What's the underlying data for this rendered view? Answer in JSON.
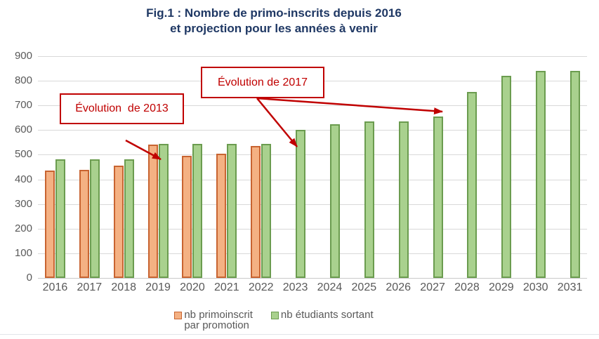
{
  "title": {
    "line1": "Fig.1 : Nombre de primo-inscrits depuis 2016",
    "line2": "et projection pour les années à venir"
  },
  "legend": [
    {
      "line1": "nb primoinscrit",
      "line2": "par promotion"
    },
    {
      "line1": "nb étudiants sortant"
    }
  ],
  "colors": {
    "title_navy": "#1F3864",
    "annotation_red": "#C00000",
    "axis_gray": "#595959",
    "gridline_gray": "#D9D9D9",
    "orange_fill": "#F4B183",
    "orange_border": "#C86431",
    "green_fill": "#A9D18E",
    "green_border": "#6B9C4F"
  },
  "chart_data": {
    "type": "bar",
    "title": "Fig.1 : Nombre de primo-inscrits depuis 2016 et projection pour les années à venir",
    "categories": [
      "2016",
      "2017",
      "2018",
      "2019",
      "2020",
      "2021",
      "2022",
      "2023",
      "2024",
      "2025",
      "2026",
      "2027",
      "2028",
      "2029",
      "2030",
      "2031"
    ],
    "series": [
      {
        "name": "nb primoinscrit par promotion",
        "fill": "#F4B183",
        "border": "#C86431",
        "values": [
          435,
          440,
          455,
          540,
          495,
          505,
          535,
          null,
          null,
          null,
          null,
          null,
          null,
          null,
          null,
          null
        ]
      },
      {
        "name": "nb étudiants sortant",
        "fill": "#A9D18E",
        "border": "#6B9C4F",
        "values": [
          480,
          480,
          480,
          545,
          545,
          545,
          545,
          600,
          625,
          635,
          635,
          655,
          755,
          820,
          840,
          840
        ]
      }
    ],
    "ylim": [
      0,
      900
    ],
    "ytick_step": 100,
    "ytick_labels": [
      "0",
      "100",
      "200",
      "300",
      "400",
      "500",
      "600",
      "700",
      "800",
      "900"
    ],
    "grid": true,
    "legend_position": "bottom",
    "annotations": [
      {
        "text": "Évolution  de 2013",
        "box": {
          "x": 85,
          "y": 133,
          "w": 177,
          "h": 44
        },
        "arrows": [
          [
            179,
            200,
            229,
            227
          ]
        ]
      },
      {
        "text": "Évolution de 2017",
        "box": {
          "x": 286,
          "y": 95,
          "w": 176,
          "h": 45
        },
        "arrows": [
          [
            366,
            140,
            423,
            209
          ],
          [
            366,
            140,
            630,
            159
          ]
        ]
      }
    ]
  }
}
